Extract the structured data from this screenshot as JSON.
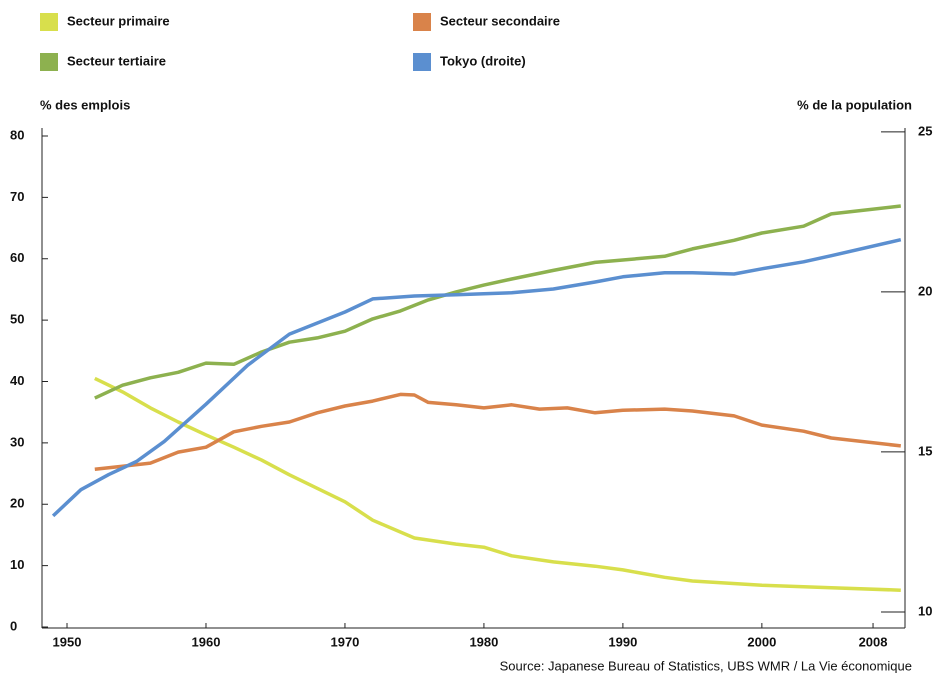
{
  "chart_data": {
    "type": "line",
    "y_label": "% des emplois",
    "y2_label": "% de la population",
    "source": "Source: Japanese Bureau of Statistics, UBS WMR / La Vie économique",
    "xlim": [
      1948.2,
      2010.3
    ],
    "xticks": [
      1950,
      1960,
      1970,
      1980,
      1990,
      2000,
      2008
    ],
    "ylim": [
      0,
      80
    ],
    "yticks": [
      0,
      10,
      20,
      30,
      40,
      50,
      60,
      70,
      80
    ],
    "y2lim": [
      9.53,
      24.87
    ],
    "y2ticks": [
      10,
      15,
      20,
      25
    ],
    "series": [
      {
        "name": "Secteur primaire",
        "color": "#d8df4c",
        "x": [
          1952,
          1954,
          1956,
          1958,
          1960,
          1962,
          1964,
          1966,
          1968,
          1970,
          1972,
          1975,
          1978,
          1980,
          1982,
          1985,
          1988,
          1990,
          1993,
          1995,
          2000,
          2005,
          2010
        ],
        "values": [
          40.5,
          38.3,
          35.7,
          33.4,
          31.3,
          29.3,
          27.2,
          24.8,
          22.6,
          20.4,
          17.4,
          14.5,
          13.5,
          13.0,
          11.6,
          10.6,
          9.9,
          9.3,
          8.1,
          7.5,
          6.8,
          6.4,
          6.0
        ]
      },
      {
        "name": "Secteur secondaire",
        "color": "#d9834a",
        "x": [
          1952,
          1954,
          1956,
          1958,
          1960,
          1962,
          1964,
          1966,
          1968,
          1970,
          1972,
          1974,
          1975,
          1976,
          1978,
          1980,
          1982,
          1984,
          1986,
          1988,
          1990,
          1993,
          1995,
          1998,
          2000,
          2003,
          2005,
          2010
        ],
        "values": [
          25.7,
          26.2,
          26.7,
          28.5,
          29.3,
          31.8,
          32.7,
          33.4,
          34.9,
          36.0,
          36.8,
          37.9,
          37.8,
          36.6,
          36.2,
          35.7,
          36.2,
          35.5,
          35.7,
          34.9,
          35.3,
          35.5,
          35.2,
          34.4,
          32.9,
          31.9,
          30.8,
          29.5
        ]
      },
      {
        "name": "Secteur tertiaire",
        "color": "#8db14f",
        "x": [
          1952,
          1954,
          1956,
          1958,
          1960,
          1962,
          1964,
          1966,
          1968,
          1970,
          1972,
          1974,
          1976,
          1978,
          1980,
          1982,
          1985,
          1988,
          1990,
          1993,
          1995,
          1998,
          2000,
          2003,
          2005,
          2010
        ],
        "values": [
          37.3,
          39.4,
          40.6,
          41.5,
          43.0,
          42.8,
          44.8,
          46.4,
          47.1,
          48.2,
          50.2,
          51.5,
          53.3,
          54.6,
          55.7,
          56.7,
          58.1,
          59.4,
          59.8,
          60.4,
          61.6,
          63.0,
          64.2,
          65.3,
          67.3,
          68.6
        ]
      },
      {
        "name": "Tokyo (droite)",
        "color": "#5b8fd0",
        "axis": "y2",
        "x": [
          1949,
          1951,
          1953,
          1955,
          1957,
          1960,
          1963,
          1966,
          1970,
          1972,
          1975,
          1978,
          1980,
          1982,
          1985,
          1988,
          1990,
          1993,
          1995,
          1998,
          2000,
          2003,
          2005,
          2010
        ],
        "values": [
          13.0,
          13.82,
          14.29,
          14.7,
          15.33,
          16.49,
          17.71,
          18.68,
          19.37,
          19.78,
          19.87,
          19.91,
          19.94,
          19.97,
          20.09,
          20.31,
          20.47,
          20.6,
          20.6,
          20.56,
          20.72,
          20.94,
          21.13,
          21.63
        ]
      }
    ]
  }
}
